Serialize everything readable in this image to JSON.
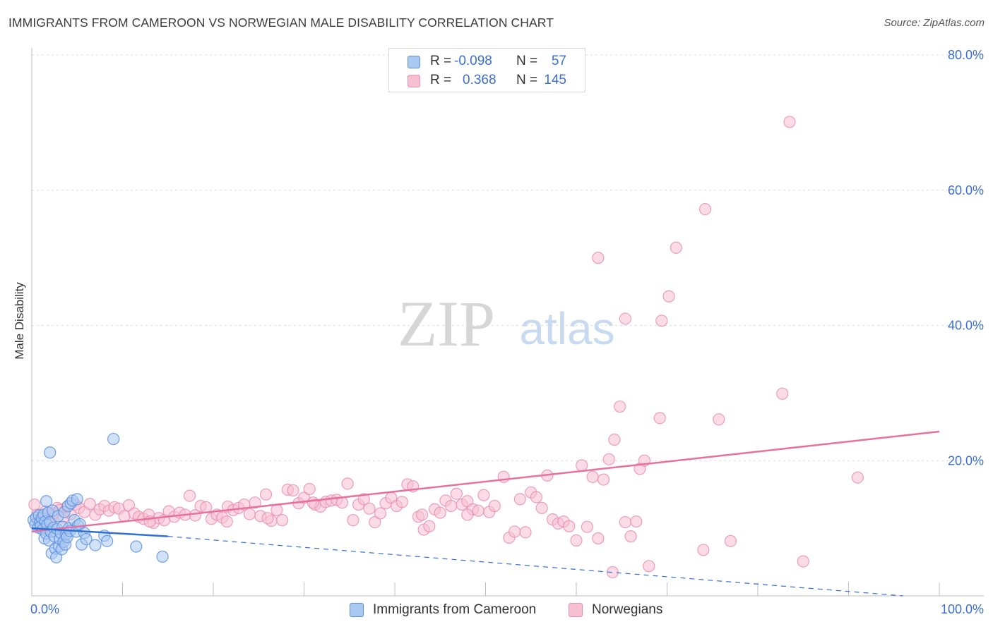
{
  "header": {
    "title": "IMMIGRANTS FROM CAMEROON VS NORWEGIAN MALE DISABILITY CORRELATION CHART",
    "source": "Source: ZipAtlas.com"
  },
  "watermark": {
    "zip": "ZIP",
    "atlas": "atlas"
  },
  "stats": [
    {
      "r_label": "R =",
      "r_value": "-0.098",
      "n_label": "N =",
      "n_value": "57"
    },
    {
      "r_label": "R =",
      "r_value": "0.368",
      "n_label": "N =",
      "n_value": "145"
    }
  ],
  "legend": [
    {
      "label": "Immigrants from Cameroon"
    },
    {
      "label": "Norwegians"
    }
  ],
  "colors": {
    "blue_fill": "#a9c9f2",
    "blue_stroke": "#5b8fe0",
    "blue_line": "#2f6fd6",
    "pink_fill": "#f7bfd2",
    "pink_stroke": "#ea8db0",
    "pink_line": "#e8709d",
    "axis_label": "#3a6fd1",
    "grid": "#dcdcdc"
  },
  "chart_data": {
    "type": "scatter",
    "title": "IMMIGRANTS FROM CAMEROON VS NORWEGIAN MALE DISABILITY CORRELATION CHART",
    "xlabel": "",
    "ylabel": "Male Disability",
    "xlim": [
      0,
      100
    ],
    "ylim": [
      0,
      80
    ],
    "x_tick_labels": [
      "0.0%",
      "100.0%"
    ],
    "y_ticks": [
      20,
      40,
      60,
      80
    ],
    "y_tick_labels": [
      "20.0%",
      "40.0%",
      "60.0%",
      "80.0%"
    ],
    "grid": true,
    "legend_position": "bottom-center",
    "series": [
      {
        "name": "Immigrants from Cameroon",
        "r": -0.098,
        "n": 57,
        "points": [
          [
            0.2,
            11.2
          ],
          [
            0.4,
            10.6
          ],
          [
            0.5,
            11.6
          ],
          [
            0.7,
            10.1
          ],
          [
            0.8,
            11.9
          ],
          [
            0.9,
            10.8
          ],
          [
            1.0,
            10.3
          ],
          [
            1.1,
            11.5
          ],
          [
            1.2,
            9.8
          ],
          [
            1.3,
            12.0
          ],
          [
            1.4,
            8.5
          ],
          [
            1.5,
            11.0
          ],
          [
            1.6,
            9.2
          ],
          [
            1.6,
            14.0
          ],
          [
            1.7,
            10.5
          ],
          [
            1.8,
            12.3
          ],
          [
            1.9,
            8.2
          ],
          [
            2.0,
            10.9
          ],
          [
            2.1,
            9.5
          ],
          [
            2.2,
            6.3
          ],
          [
            2.3,
            12.6
          ],
          [
            2.4,
            10.1
          ],
          [
            2.5,
            8.8
          ],
          [
            2.6,
            7.0
          ],
          [
            2.7,
            5.7
          ],
          [
            2.8,
            9.9
          ],
          [
            2.9,
            11.8
          ],
          [
            3.0,
            7.3
          ],
          [
            3.1,
            8.4
          ],
          [
            3.2,
            9.3
          ],
          [
            3.3,
            6.9
          ],
          [
            3.4,
            10.2
          ],
          [
            3.5,
            8.0
          ],
          [
            3.6,
            12.4
          ],
          [
            3.7,
            7.6
          ],
          [
            3.8,
            9.1
          ],
          [
            3.9,
            8.7
          ],
          [
            4.0,
            13.3
          ],
          [
            4.1,
            10.0
          ],
          [
            4.2,
            9.6
          ],
          [
            4.3,
            13.7
          ],
          [
            4.5,
            14.1
          ],
          [
            4.7,
            11.2
          ],
          [
            4.9,
            9.5
          ],
          [
            5.1,
            10.4
          ],
          [
            5.3,
            10.6
          ],
          [
            5.5,
            7.6
          ],
          [
            5.8,
            9.3
          ],
          [
            6.0,
            8.4
          ],
          [
            2.0,
            21.2
          ],
          [
            9.0,
            23.2
          ],
          [
            5.0,
            14.3
          ],
          [
            8.0,
            8.9
          ],
          [
            8.3,
            8.1
          ],
          [
            11.5,
            7.3
          ],
          [
            14.4,
            5.8
          ],
          [
            7.0,
            7.5
          ]
        ]
      },
      {
        "name": "Norwegians",
        "r": 0.368,
        "n": 145,
        "points": [
          [
            0.3,
            13.5
          ],
          [
            0.6,
            12.0
          ],
          [
            0.9,
            11.0
          ],
          [
            1.2,
            11.8
          ],
          [
            1.5,
            12.5
          ],
          [
            1.8,
            10.5
          ],
          [
            2.1,
            11.3
          ],
          [
            2.4,
            12.2
          ],
          [
            2.8,
            13.0
          ],
          [
            3.1,
            12.7
          ],
          [
            3.5,
            11.6
          ],
          [
            3.9,
            13.2
          ],
          [
            4.3,
            12.1
          ],
          [
            4.8,
            13.5
          ],
          [
            5.2,
            13.0
          ],
          [
            5.8,
            12.4
          ],
          [
            6.4,
            13.6
          ],
          [
            7.0,
            12.0
          ],
          [
            7.5,
            12.8
          ],
          [
            8.0,
            13.3
          ],
          [
            8.5,
            12.6
          ],
          [
            9.1,
            13.1
          ],
          [
            9.6,
            12.9
          ],
          [
            10.2,
            11.8
          ],
          [
            10.7,
            13.4
          ],
          [
            11.3,
            12.2
          ],
          [
            11.8,
            11.7
          ],
          [
            12.3,
            11.4
          ],
          [
            12.9,
            12.0
          ],
          [
            13.4,
            10.8
          ],
          [
            14.0,
            11.5
          ],
          [
            14.6,
            11.2
          ],
          [
            15.1,
            12.5
          ],
          [
            15.7,
            11.7
          ],
          [
            16.3,
            12.3
          ],
          [
            16.9,
            12.0
          ],
          [
            17.4,
            14.8
          ],
          [
            18.0,
            11.9
          ],
          [
            18.6,
            13.3
          ],
          [
            19.2,
            13.1
          ],
          [
            19.8,
            11.4
          ],
          [
            20.4,
            12.0
          ],
          [
            21.0,
            11.6
          ],
          [
            21.6,
            13.2
          ],
          [
            22.2,
            12.7
          ],
          [
            22.8,
            13.0
          ],
          [
            23.4,
            13.5
          ],
          [
            24.0,
            12.1
          ],
          [
            24.6,
            13.8
          ],
          [
            25.2,
            11.8
          ],
          [
            25.8,
            15.0
          ],
          [
            26.4,
            11.1
          ],
          [
            27.0,
            12.7
          ],
          [
            27.6,
            11.2
          ],
          [
            28.2,
            15.7
          ],
          [
            28.8,
            15.6
          ],
          [
            29.4,
            13.7
          ],
          [
            30.0,
            14.5
          ],
          [
            30.6,
            15.8
          ],
          [
            31.2,
            13.5
          ],
          [
            31.8,
            13.2
          ],
          [
            32.4,
            13.9
          ],
          [
            33.0,
            14.1
          ],
          [
            33.6,
            14.2
          ],
          [
            34.2,
            13.8
          ],
          [
            34.8,
            16.6
          ],
          [
            35.4,
            11.2
          ],
          [
            36.0,
            13.5
          ],
          [
            36.6,
            14.3
          ],
          [
            37.2,
            12.9
          ],
          [
            37.8,
            10.9
          ],
          [
            38.4,
            12.2
          ],
          [
            39.0,
            13.7
          ],
          [
            39.6,
            14.5
          ],
          [
            40.2,
            13.3
          ],
          [
            40.8,
            13.9
          ],
          [
            41.4,
            16.5
          ],
          [
            42.0,
            16.2
          ],
          [
            42.6,
            11.7
          ],
          [
            43.2,
            9.8
          ],
          [
            43.8,
            10.3
          ],
          [
            44.4,
            12.8
          ],
          [
            45.0,
            12.3
          ],
          [
            45.6,
            14.1
          ],
          [
            46.2,
            13.3
          ],
          [
            46.8,
            15.1
          ],
          [
            47.4,
            13.5
          ],
          [
            48.0,
            14.0
          ],
          [
            48.6,
            12.8
          ],
          [
            49.2,
            12.6
          ],
          [
            49.8,
            14.9
          ],
          [
            50.4,
            12.4
          ],
          [
            51.0,
            13.3
          ],
          [
            52.0,
            17.6
          ],
          [
            52.6,
            8.6
          ],
          [
            53.2,
            9.5
          ],
          [
            53.8,
            14.3
          ],
          [
            54.4,
            9.4
          ],
          [
            55.0,
            15.3
          ],
          [
            55.6,
            14.6
          ],
          [
            56.2,
            13.0
          ],
          [
            56.8,
            17.8
          ],
          [
            57.4,
            11.3
          ],
          [
            58.0,
            10.7
          ],
          [
            58.6,
            11.0
          ],
          [
            59.2,
            10.3
          ],
          [
            60.0,
            8.2
          ],
          [
            60.6,
            19.3
          ],
          [
            61.2,
            10.2
          ],
          [
            61.8,
            17.6
          ],
          [
            62.4,
            8.5
          ],
          [
            63.0,
            17.2
          ],
          [
            63.6,
            20.2
          ],
          [
            64.2,
            23.1
          ],
          [
            64.8,
            28.0
          ],
          [
            65.4,
            10.9
          ],
          [
            66.0,
            8.8
          ],
          [
            66.6,
            11.0
          ],
          [
            67.0,
            18.8
          ],
          [
            67.5,
            20.0
          ],
          [
            68.0,
            4.4
          ],
          [
            69.4,
            40.7
          ],
          [
            62.4,
            50.0
          ],
          [
            65.4,
            41.0
          ],
          [
            69.2,
            26.3
          ],
          [
            71.0,
            51.5
          ],
          [
            70.2,
            44.3
          ],
          [
            74.2,
            57.2
          ],
          [
            74.0,
            6.8
          ],
          [
            75.7,
            26.1
          ],
          [
            77.0,
            8.1
          ],
          [
            82.7,
            29.9
          ],
          [
            83.5,
            70.1
          ],
          [
            85.0,
            5.1
          ],
          [
            91.0,
            17.5
          ],
          [
            13.0,
            11.0
          ],
          [
            21.5,
            11.0
          ],
          [
            26.0,
            11.5
          ],
          [
            43.0,
            12.0
          ],
          [
            48.0,
            12.0
          ],
          [
            64.0,
            3.5
          ],
          [
            31.0,
            13.8
          ]
        ]
      }
    ],
    "trend_lines": [
      {
        "series": "Immigrants from Cameroon",
        "solid": [
          [
            0,
            10.0
          ],
          [
            15,
            8.8
          ]
        ],
        "dashed": [
          [
            15,
            8.8
          ],
          [
            96,
            0
          ]
        ]
      },
      {
        "series": "Norwegians",
        "solid": [
          [
            0,
            9.5
          ],
          [
            100,
            24.3
          ]
        ]
      }
    ]
  }
}
